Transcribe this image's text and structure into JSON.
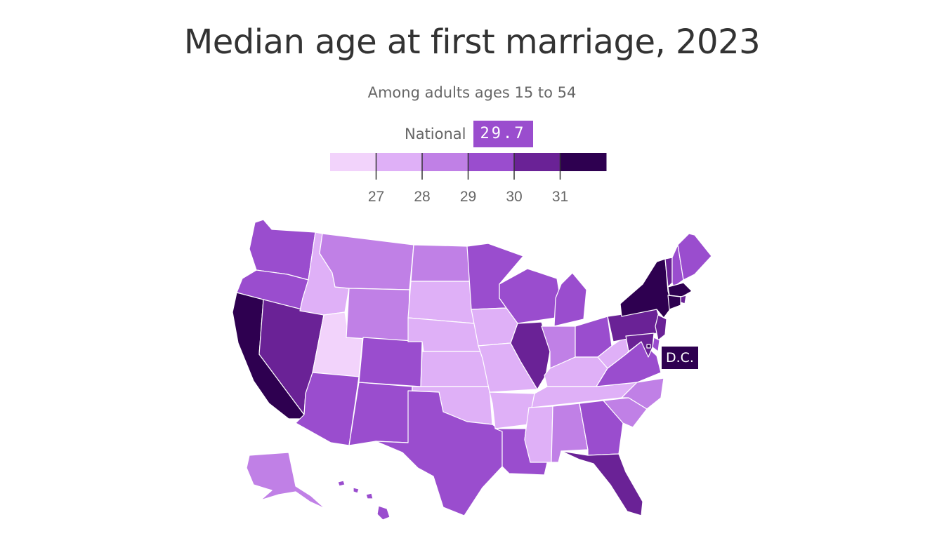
{
  "title": "Median age at first marriage, 2023",
  "subtitle": "Among adults ages 15 to 54",
  "national": {
    "label": "National",
    "value": "29.7"
  },
  "legend": {
    "thresholds": [
      27,
      28,
      29,
      30,
      31
    ],
    "colors": [
      "#f2d3fb",
      "#dfb0f7",
      "#c080e6",
      "#9a4dce",
      "#6a2296",
      "#2e0050"
    ]
  },
  "dc_label": "D.C.",
  "states": {
    "WA": {
      "bin": 3
    },
    "OR": {
      "bin": 3
    },
    "CA": {
      "bin": 5
    },
    "NV": {
      "bin": 4
    },
    "ID": {
      "bin": 1
    },
    "UT": {
      "bin": 0
    },
    "AZ": {
      "bin": 3
    },
    "MT": {
      "bin": 2
    },
    "WY": {
      "bin": 2
    },
    "CO": {
      "bin": 3
    },
    "NM": {
      "bin": 3
    },
    "ND": {
      "bin": 2
    },
    "SD": {
      "bin": 1
    },
    "NE": {
      "bin": 1
    },
    "KS": {
      "bin": 1
    },
    "OK": {
      "bin": 1
    },
    "TX": {
      "bin": 3
    },
    "MN": {
      "bin": 3
    },
    "IA": {
      "bin": 1
    },
    "MO": {
      "bin": 1
    },
    "AR": {
      "bin": 1
    },
    "LA": {
      "bin": 3
    },
    "WI": {
      "bin": 3
    },
    "IL": {
      "bin": 4
    },
    "MI": {
      "bin": 3
    },
    "IN": {
      "bin": 2
    },
    "OH": {
      "bin": 3
    },
    "KY": {
      "bin": 1
    },
    "TN": {
      "bin": 1
    },
    "MS": {
      "bin": 1
    },
    "AL": {
      "bin": 2
    },
    "GA": {
      "bin": 3
    },
    "FL": {
      "bin": 4
    },
    "SC": {
      "bin": 2
    },
    "NC": {
      "bin": 2
    },
    "VA": {
      "bin": 3
    },
    "WV": {
      "bin": 1
    },
    "PA": {
      "bin": 4
    },
    "NY": {
      "bin": 5
    },
    "VT": {
      "bin": 4
    },
    "NH": {
      "bin": 3
    },
    "ME": {
      "bin": 3
    },
    "MA": {
      "bin": 5
    },
    "RI": {
      "bin": 4
    },
    "CT": {
      "bin": 5
    },
    "NJ": {
      "bin": 4
    },
    "DE": {
      "bin": 3
    },
    "MD": {
      "bin": 4
    },
    "DC": {
      "bin": 5
    },
    "AK": {
      "bin": 2
    },
    "HI": {
      "bin": 3
    }
  }
}
